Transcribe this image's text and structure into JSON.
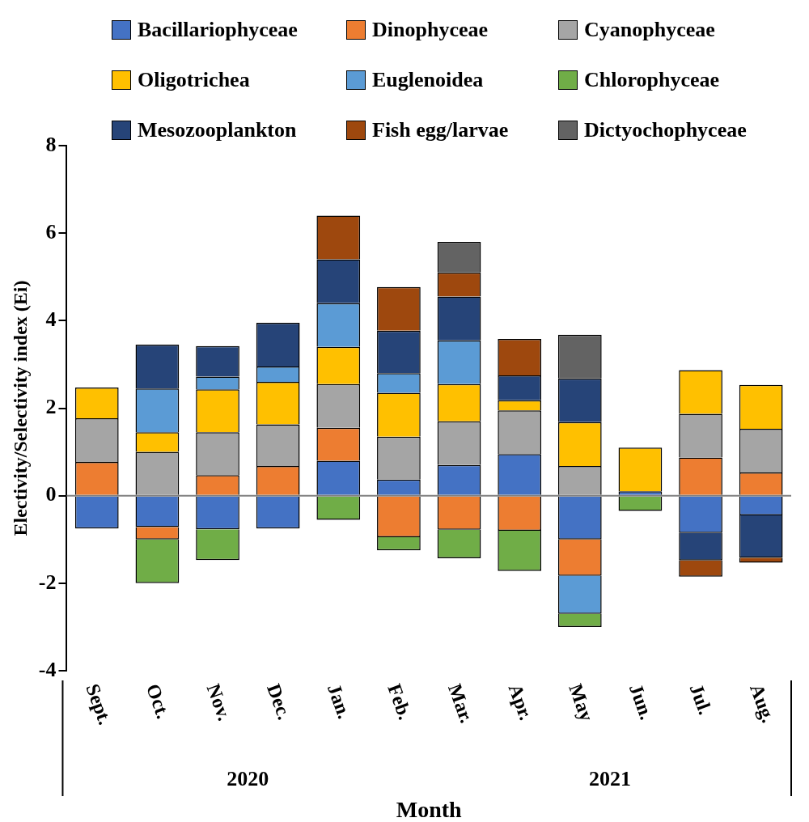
{
  "chart_data": {
    "type": "bar",
    "stacked": true,
    "xlabel": "Month",
    "ylabel": "Electivity/Selectivity index (Ei)",
    "categories": [
      "Sept.",
      "Oct.",
      "Nov.",
      "Dec.",
      "Jan.",
      "Feb.",
      "Mar.",
      "Apr.",
      "May",
      "Jun.",
      "Jul.",
      "Aug."
    ],
    "series": [
      {
        "name": "Bacillariophyceae",
        "color": "#4472c4",
        "values": [
          -0.75,
          -0.72,
          -0.77,
          -0.75,
          0.8,
          0.37,
          0.7,
          0.95,
          -1.0,
          0.1,
          -0.85,
          -0.45
        ]
      },
      {
        "name": "Dinophyceae",
        "color": "#ed7d31",
        "values": [
          0.77,
          -0.28,
          0.47,
          0.68,
          0.75,
          -0.95,
          -0.78,
          -0.8,
          -0.83,
          null,
          0.87,
          0.53
        ]
      },
      {
        "name": "Cyanophyceae",
        "color": "#a5a5a5",
        "values": [
          1.0,
          1.0,
          0.98,
          0.95,
          1.0,
          0.98,
          1.0,
          1.0,
          0.68,
          null,
          1.0,
          1.0
        ]
      },
      {
        "name": "Oligotrichea",
        "color": "#ffc000",
        "values": [
          0.7,
          0.45,
          0.98,
          0.97,
          0.85,
          1.0,
          0.85,
          0.23,
          1.0,
          1.0,
          1.0,
          1.0
        ]
      },
      {
        "name": "Euglenoidea",
        "color": "#5b9bd5",
        "values": [
          null,
          1.0,
          0.29,
          0.35,
          1.0,
          0.45,
          1.0,
          null,
          -0.87,
          null,
          null,
          null
        ]
      },
      {
        "name": "Chlorophyceae",
        "color": "#70ad47",
        "values": [
          null,
          -1.0,
          -0.7,
          null,
          -0.55,
          -0.3,
          -0.65,
          -0.92,
          -0.3,
          -0.35,
          null,
          null
        ]
      },
      {
        "name": "Mesozooplankton",
        "color": "#264478",
        "values": [
          null,
          1.0,
          0.7,
          1.0,
          1.0,
          0.97,
          1.0,
          0.57,
          1.0,
          null,
          -0.63,
          -0.97
        ]
      },
      {
        "name": "Fish egg/larvae",
        "color": "#9e480e",
        "values": [
          null,
          null,
          null,
          null,
          1.0,
          1.0,
          0.55,
          0.83,
          null,
          null,
          -0.37,
          -0.11
        ]
      },
      {
        "name": "Dictyochophyceae",
        "color": "#636363",
        "values": [
          null,
          null,
          null,
          null,
          null,
          null,
          0.7,
          null,
          1.0,
          null,
          null,
          null
        ]
      }
    ],
    "ylim": [
      -4,
      8
    ],
    "yticks": [
      -4,
      -2,
      0,
      2,
      4,
      6,
      8
    ],
    "grid": false,
    "legend": "top",
    "ref_lines": [
      {
        "axis": "y",
        "value": 0,
        "color": "#808080"
      }
    ],
    "annotations": [
      "2020",
      "2021"
    ]
  }
}
